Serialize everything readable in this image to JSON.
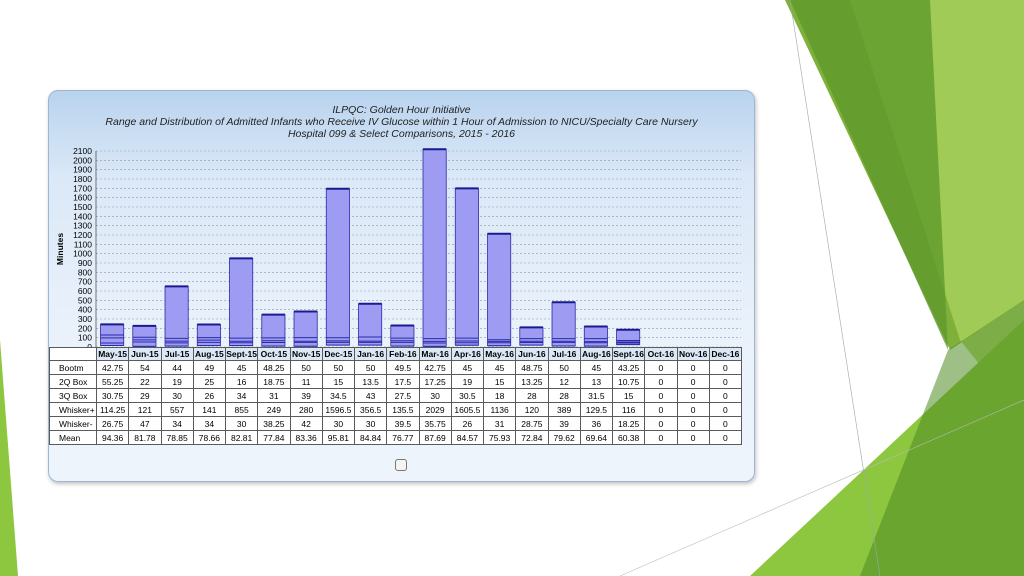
{
  "chart_data": {
    "type": "box",
    "title": "ILPQC: Golden Hour Initiative",
    "subtitle": "Range and Distribution of Admitted Infants who Receive IV Glucose within 1 Hour of Admission to NICU/Specialty Care Nursery",
    "subtitle2": "Hospital 099 & Select Comparisons, 2015 - 2016",
    "ylabel": "Minutes",
    "ylim": [
      0,
      2100
    ],
    "yticks": [
      0,
      100,
      200,
      300,
      400,
      500,
      600,
      700,
      800,
      900,
      1000,
      1100,
      1200,
      1300,
      1400,
      1500,
      1600,
      1700,
      1800,
      1900,
      2000,
      2100
    ],
    "grid": true,
    "categories": [
      "May-15",
      "Jun-15",
      "Jul-15",
      "Aug-15",
      "Sept-15",
      "Oct-15",
      "Nov-15",
      "Dec-15",
      "Jan-16",
      "Feb-16",
      "Mar-16",
      "Apr-16",
      "May-16",
      "Jun-16",
      "Jul-16",
      "Aug-16",
      "Sept-16",
      "Oct-16",
      "Nov-16",
      "Dec-16"
    ],
    "rows": [
      {
        "label": "Bootm",
        "key": "bootm",
        "values": [
          "42.75",
          "54",
          "44",
          "49",
          "45",
          "48.25",
          "50",
          "50",
          "50",
          "49.5",
          "42.75",
          "45",
          "45",
          "48.75",
          "50",
          "45",
          "43.25",
          "0",
          "0",
          "0"
        ]
      },
      {
        "label": "2Q Box",
        "key": "q2",
        "values": [
          "55.25",
          "22",
          "19",
          "25",
          "16",
          "18.75",
          "11",
          "15",
          "13.5",
          "17.5",
          "17.25",
          "19",
          "15",
          "13.25",
          "12",
          "13",
          "10.75",
          "0",
          "0",
          "0"
        ]
      },
      {
        "label": "3Q Box",
        "key": "q3",
        "values": [
          "30.75",
          "29",
          "30",
          "26",
          "34",
          "31",
          "39",
          "34.5",
          "43",
          "27.5",
          "30",
          "30.5",
          "18",
          "28",
          "28",
          "31.5",
          "15",
          "0",
          "0",
          "0"
        ]
      },
      {
        "label": "Whisker+",
        "key": "wplus",
        "values": [
          "114.25",
          "121",
          "557",
          "141",
          "855",
          "249",
          "280",
          "1596.5",
          "356.5",
          "135.5",
          "2029",
          "1605.5",
          "1136",
          "120",
          "389",
          "129.5",
          "116",
          "0",
          "0",
          "0"
        ]
      },
      {
        "label": "Whisker-",
        "key": "wminus",
        "values": [
          "26.75",
          "47",
          "34",
          "34",
          "30",
          "38.25",
          "42",
          "30",
          "30",
          "39.5",
          "35.75",
          "26",
          "31",
          "28.75",
          "39",
          "36",
          "18.25",
          "0",
          "0",
          "0"
        ]
      },
      {
        "label": "Mean",
        "key": "mean",
        "values": [
          "94.36",
          "81.78",
          "78.85",
          "78.66",
          "82.81",
          "77.84",
          "83.36",
          "95.81",
          "84.84",
          "76.77",
          "87.69",
          "84.57",
          "75.93",
          "72.84",
          "79.62",
          "69.64",
          "60.38",
          "0",
          "0",
          "0"
        ]
      }
    ]
  },
  "colors": {
    "box_fill": "#9d9cf2",
    "box_edge": "#2a2aa8",
    "whisker": "#1a1a90",
    "grid": "#8899aa",
    "accent_green_dark": "#4f8a22",
    "accent_green_light": "#8dc63f"
  }
}
